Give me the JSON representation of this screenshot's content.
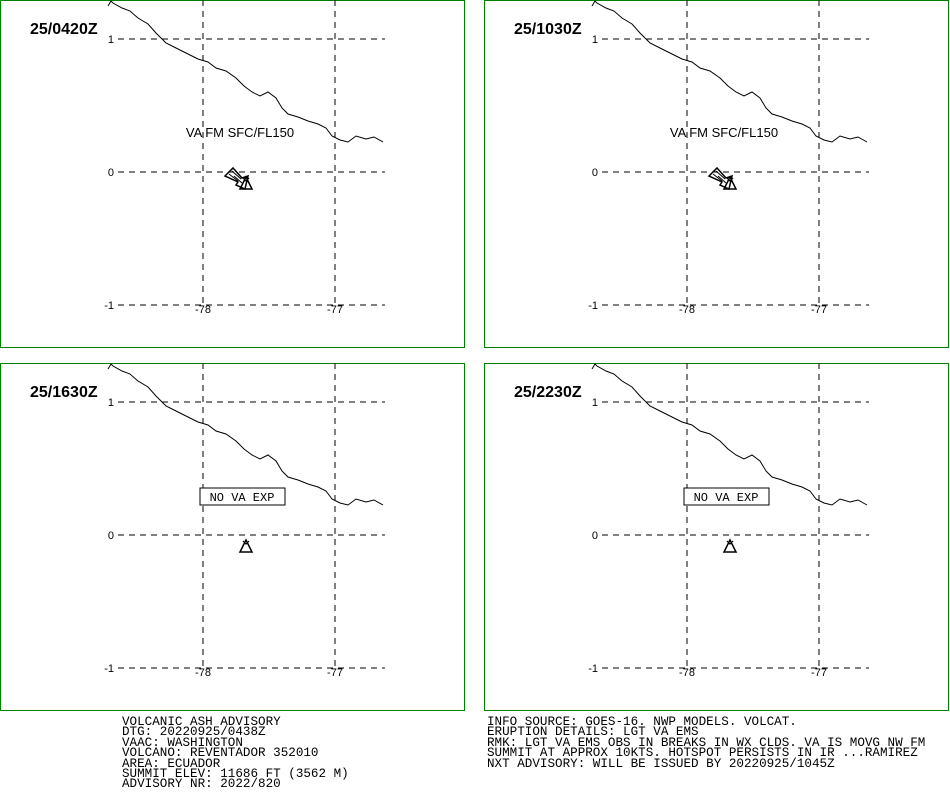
{
  "panels": [
    {
      "time": "25/0420Z",
      "annotation": "VA FM SFC/FL150",
      "boxed": false
    },
    {
      "time": "25/1030Z",
      "annotation": "VA FM SFC/FL150",
      "boxed": false
    },
    {
      "time": "25/1630Z",
      "annotation": "NO VA EXP",
      "boxed": true
    },
    {
      "time": "25/2230Z",
      "annotation": "NO VA EXP",
      "boxed": true
    }
  ],
  "grid": {
    "lat_labels": [
      "1",
      "0",
      "-1"
    ],
    "lon_labels": [
      "-78",
      "-77"
    ]
  },
  "advisory_left": [
    "VOLCANIC ASH ADVISORY",
    "DTG: 20220925/0438Z",
    "VAAC: WASHINGTON",
    "VOLCANO: REVENTADOR 352010",
    "AREA: ECUADOR",
    "SUMMIT ELEV: 11686 FT (3562 M)",
    "ADVISORY NR: 2022/820"
  ],
  "advisory_right": [
    "INFO SOURCE: GOES-16. NWP MODELS. VOLCAT.",
    "ERUPTION DETAILS: LGT VA EMS",
    "RMK: LGT VA EMS OBS IN BREAKS IN WX CLDS. VA IS MOVG NW FM",
    "SUMMIT AT APPROX 10KTS. HOTSPOT PERSISTS IN IR ...RAMIREZ",
    "NXT ADVISORY: WILL BE ISSUED BY 20220925/1045Z"
  ]
}
